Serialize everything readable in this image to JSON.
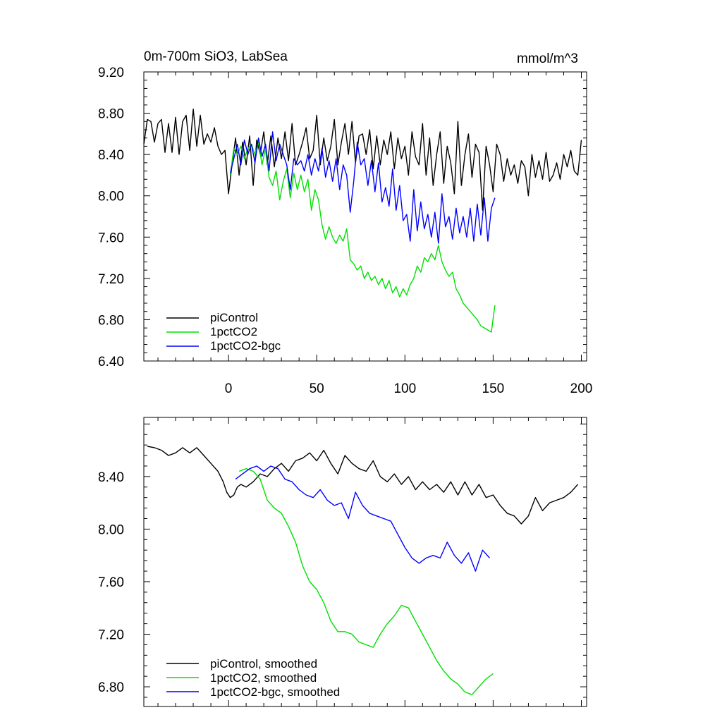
{
  "chart_data": [
    {
      "type": "line",
      "title_left": "0m-700m SiO3, LabSea",
      "title_right": "mmol/m^3",
      "xlim": [
        -48,
        203
      ],
      "ylim": [
        6.4,
        9.2
      ],
      "x_ticks": [
        0,
        50,
        100,
        150,
        200
      ],
      "x_tick_labels": [
        "0",
        "50",
        "100",
        "150",
        "200"
      ],
      "y_ticks": [
        6.4,
        6.8,
        7.2,
        7.6,
        8.0,
        8.4,
        8.8,
        9.2
      ],
      "y_tick_labels": [
        "6.40",
        "6.80",
        "7.20",
        "7.60",
        "8.00",
        "8.40",
        "8.80",
        "9.20"
      ],
      "series": [
        {
          "name": "piControl",
          "color": "#000000",
          "x": [
            -48,
            -46,
            -44,
            -42,
            -40,
            -38,
            -36,
            -34,
            -32,
            -30,
            -28,
            -26,
            -24,
            -22,
            -20,
            -18,
            -16,
            -14,
            -12,
            -10,
            -8,
            -6,
            -4,
            -2,
            0,
            2,
            4,
            6,
            8,
            10,
            12,
            14,
            16,
            18,
            20,
            22,
            24,
            26,
            28,
            30,
            32,
            34,
            36,
            38,
            40,
            42,
            44,
            46,
            48,
            50,
            52,
            54,
            56,
            58,
            60,
            62,
            64,
            66,
            68,
            70,
            72,
            74,
            76,
            78,
            80,
            82,
            84,
            86,
            88,
            90,
            92,
            94,
            96,
            98,
            100,
            102,
            104,
            106,
            108,
            110,
            112,
            114,
            116,
            118,
            120,
            122,
            124,
            126,
            128,
            130,
            132,
            134,
            136,
            138,
            140,
            142,
            144,
            146,
            148,
            150,
            152,
            154,
            156,
            158,
            160,
            162,
            164,
            166,
            168,
            170,
            172,
            174,
            176,
            178,
            180,
            182,
            184,
            186,
            188,
            190,
            192,
            194,
            196,
            198,
            200
          ],
          "values": [
            8.5,
            8.74,
            8.72,
            8.52,
            8.7,
            8.74,
            8.42,
            8.7,
            8.42,
            8.76,
            8.4,
            8.72,
            8.78,
            8.44,
            8.84,
            8.48,
            8.78,
            8.5,
            8.6,
            8.52,
            8.66,
            8.48,
            8.4,
            8.44,
            8.02,
            8.3,
            8.56,
            8.2,
            8.52,
            8.3,
            8.58,
            8.1,
            8.54,
            8.4,
            8.62,
            8.3,
            8.58,
            8.28,
            8.56,
            8.36,
            8.62,
            8.34,
            8.7,
            8.3,
            8.4,
            8.52,
            8.66,
            8.36,
            8.44,
            8.78,
            8.3,
            8.56,
            8.34,
            8.48,
            8.74,
            8.3,
            8.52,
            8.7,
            8.4,
            8.72,
            8.32,
            8.58,
            8.6,
            8.4,
            8.64,
            8.26,
            8.58,
            8.3,
            8.54,
            8.4,
            8.62,
            8.26,
            8.56,
            8.36,
            8.48,
            8.2,
            8.62,
            8.38,
            8.3,
            8.7,
            8.2,
            8.56,
            8.1,
            8.4,
            8.62,
            8.12,
            8.48,
            8.32,
            8.02,
            8.72,
            8.1,
            8.4,
            8.6,
            8.18,
            8.5,
            8.42,
            7.86,
            8.48,
            8.3,
            8.04,
            8.5,
            8.4,
            8.14,
            8.36,
            8.2,
            8.3,
            8.12,
            8.34,
            8.28,
            8.0,
            8.4,
            8.18,
            8.34,
            8.16,
            8.42,
            8.14,
            8.2,
            8.32,
            8.16,
            8.4,
            8.28,
            8.44,
            8.24,
            8.2,
            8.54
          ]
        },
        {
          "name": "1pctCO2",
          "color": "#00e000",
          "x": [
            1,
            3,
            5,
            7,
            9,
            11,
            13,
            15,
            17,
            19,
            21,
            23,
            25,
            27,
            29,
            31,
            33,
            35,
            37,
            39,
            41,
            43,
            45,
            47,
            49,
            51,
            53,
            55,
            57,
            59,
            61,
            63,
            65,
            67,
            69,
            71,
            73,
            75,
            77,
            79,
            81,
            83,
            85,
            87,
            89,
            91,
            93,
            95,
            97,
            99,
            101,
            103,
            105,
            107,
            109,
            111,
            113,
            115,
            117,
            119,
            121,
            123,
            125,
            127,
            129,
            131,
            133,
            135,
            137,
            139,
            141,
            143,
            145,
            147,
            149,
            151
          ],
          "values": [
            8.2,
            8.46,
            8.4,
            8.48,
            8.36,
            8.46,
            8.5,
            8.4,
            8.52,
            8.3,
            8.46,
            8.18,
            8.1,
            8.24,
            7.96,
            8.14,
            8.26,
            7.98,
            8.22,
            8.06,
            8.2,
            8.04,
            8.16,
            7.86,
            8.06,
            7.96,
            7.72,
            7.58,
            7.7,
            7.6,
            7.54,
            7.62,
            7.56,
            7.68,
            7.38,
            7.34,
            7.28,
            7.32,
            7.2,
            7.26,
            7.18,
            7.22,
            7.14,
            7.2,
            7.1,
            7.18,
            7.06,
            7.12,
            7.02,
            7.1,
            7.04,
            7.14,
            7.2,
            7.32,
            7.26,
            7.4,
            7.36,
            7.44,
            7.38,
            7.52,
            7.36,
            7.28,
            7.22,
            7.26,
            7.1,
            7.04,
            6.96,
            6.92,
            6.88,
            6.84,
            6.8,
            6.74,
            6.72,
            6.7,
            6.68,
            6.94
          ]
        },
        {
          "name": "1pctCO2-bgc",
          "color": "#0000ff",
          "x": [
            1,
            3,
            5,
            7,
            9,
            11,
            13,
            15,
            17,
            19,
            21,
            23,
            25,
            27,
            29,
            31,
            33,
            35,
            37,
            39,
            41,
            43,
            45,
            47,
            49,
            51,
            53,
            55,
            57,
            59,
            61,
            63,
            65,
            67,
            69,
            71,
            73,
            75,
            77,
            79,
            81,
            83,
            85,
            87,
            89,
            91,
            93,
            95,
            97,
            99,
            101,
            103,
            105,
            107,
            109,
            111,
            113,
            115,
            117,
            119,
            121,
            123,
            125,
            127,
            129,
            131,
            133,
            135,
            137,
            139,
            141,
            143,
            145,
            147,
            149,
            151
          ],
          "values": [
            8.22,
            8.36,
            8.5,
            8.3,
            8.54,
            8.4,
            8.5,
            8.32,
            8.56,
            8.38,
            8.5,
            8.24,
            8.62,
            8.34,
            8.5,
            8.4,
            8.3,
            8.06,
            8.36,
            8.3,
            8.34,
            8.24,
            8.4,
            8.2,
            8.36,
            8.24,
            8.46,
            8.18,
            8.34,
            8.14,
            8.36,
            8.06,
            8.3,
            8.2,
            7.84,
            8.14,
            8.52,
            8.3,
            8.36,
            8.1,
            8.34,
            8.04,
            8.32,
            7.94,
            8.08,
            7.9,
            8.26,
            7.86,
            8.1,
            7.76,
            7.82,
            7.56,
            8.06,
            7.66,
            7.94,
            7.68,
            7.82,
            7.6,
            7.84,
            7.54,
            8.02,
            7.7,
            7.8,
            7.58,
            7.88,
            7.64,
            7.8,
            7.6,
            7.88,
            7.56,
            7.92,
            7.62,
            7.98,
            7.56,
            7.88,
            7.98
          ]
        }
      ],
      "legend": {
        "position": "bottom-left",
        "entries": [
          "piControl",
          "1pctCO2",
          "1pctCO2-bgc"
        ]
      }
    },
    {
      "type": "line",
      "title_left": "",
      "title_right": "",
      "xlim": [
        -48,
        203
      ],
      "ylim": [
        6.65,
        8.85
      ],
      "x_ticks": [
        0,
        50,
        100,
        150,
        200
      ],
      "x_tick_labels": [],
      "y_ticks": [
        6.8,
        7.2,
        7.6,
        8.0,
        8.4
      ],
      "y_tick_labels": [
        "6.80",
        "7.20",
        "7.60",
        "8.00",
        "8.40"
      ],
      "series": [
        {
          "name": "piControl, smoothed",
          "color": "#000000",
          "x": [
            -46,
            -42,
            -38,
            -34,
            -30,
            -26,
            -22,
            -18,
            -14,
            -10,
            -6,
            -3,
            -1,
            1,
            3,
            5,
            7,
            10,
            14,
            18,
            22,
            26,
            30,
            34,
            38,
            42,
            46,
            50,
            54,
            58,
            62,
            66,
            70,
            74,
            78,
            82,
            86,
            90,
            94,
            98,
            102,
            106,
            110,
            114,
            118,
            122,
            126,
            130,
            134,
            138,
            142,
            146,
            150,
            154,
            158,
            162,
            166,
            170,
            174,
            178,
            182,
            186,
            190,
            194,
            198
          ],
          "values": [
            8.63,
            8.62,
            8.6,
            8.56,
            8.58,
            8.62,
            8.58,
            8.62,
            8.56,
            8.5,
            8.44,
            8.36,
            8.28,
            8.24,
            8.26,
            8.32,
            8.34,
            8.32,
            8.36,
            8.42,
            8.4,
            8.46,
            8.5,
            8.44,
            8.52,
            8.54,
            8.58,
            8.52,
            8.6,
            8.5,
            8.42,
            8.56,
            8.5,
            8.46,
            8.44,
            8.52,
            8.4,
            8.36,
            8.42,
            8.34,
            8.4,
            8.3,
            8.36,
            8.3,
            8.34,
            8.28,
            8.36,
            8.26,
            8.36,
            8.26,
            8.34,
            8.24,
            8.26,
            8.18,
            8.12,
            8.1,
            8.04,
            8.1,
            8.24,
            8.14,
            8.2,
            8.22,
            8.24,
            8.28,
            8.34
          ]
        },
        {
          "name": "1pctCO2, smoothed",
          "color": "#00e000",
          "x": [
            6,
            10,
            14,
            18,
            22,
            26,
            30,
            34,
            38,
            42,
            46,
            50,
            54,
            58,
            62,
            66,
            70,
            74,
            78,
            82,
            86,
            90,
            94,
            98,
            102,
            106,
            110,
            114,
            118,
            122,
            126,
            130,
            134,
            138,
            142,
            146,
            150
          ],
          "values": [
            8.44,
            8.46,
            8.44,
            8.38,
            8.22,
            8.16,
            8.12,
            8.02,
            7.9,
            7.72,
            7.6,
            7.54,
            7.44,
            7.3,
            7.22,
            7.22,
            7.2,
            7.14,
            7.12,
            7.1,
            7.2,
            7.28,
            7.34,
            7.42,
            7.4,
            7.3,
            7.2,
            7.1,
            7.0,
            6.92,
            6.86,
            6.82,
            6.76,
            6.74,
            6.8,
            6.86,
            6.9
          ]
        },
        {
          "name": "1pctCO2-bgc, smoothed",
          "color": "#0000ff",
          "x": [
            4,
            8,
            12,
            16,
            20,
            24,
            28,
            32,
            36,
            40,
            44,
            48,
            52,
            56,
            60,
            64,
            68,
            72,
            76,
            80,
            84,
            88,
            92,
            96,
            100,
            104,
            108,
            112,
            116,
            120,
            124,
            128,
            132,
            136,
            140,
            144,
            148
          ],
          "values": [
            8.38,
            8.42,
            8.46,
            8.48,
            8.44,
            8.48,
            8.46,
            8.38,
            8.36,
            8.3,
            8.26,
            8.24,
            8.3,
            8.22,
            8.18,
            8.2,
            8.08,
            8.28,
            8.18,
            8.12,
            8.1,
            8.08,
            8.06,
            7.96,
            7.86,
            7.78,
            7.74,
            7.78,
            7.8,
            7.78,
            7.9,
            7.8,
            7.74,
            7.82,
            7.68,
            7.84,
            7.78
          ]
        }
      ],
      "legend": {
        "position": "bottom-left",
        "entries": [
          "piControl, smoothed",
          "1pctCO2, smoothed",
          "1pctCO2-bgc, smoothed"
        ]
      }
    }
  ]
}
